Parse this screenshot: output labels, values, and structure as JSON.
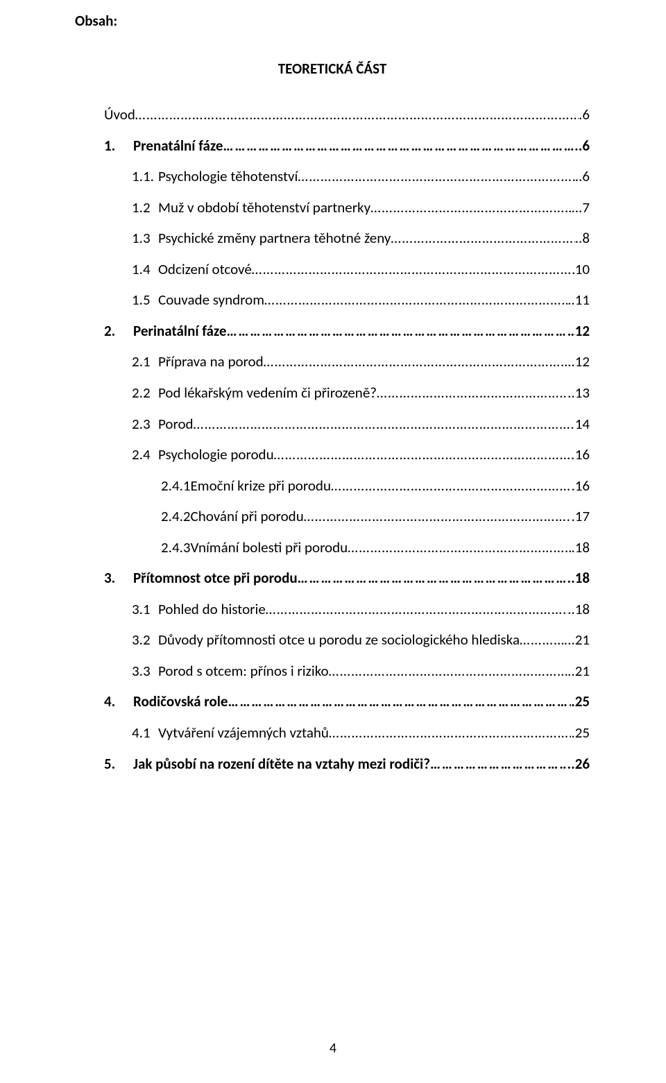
{
  "doc": {
    "heading": "Obsah:",
    "section_title": "TEORETICKÁ ČÁST",
    "page_number": "4",
    "text_color": "#000000",
    "background_color": "#ffffff",
    "font_family": "Calibri",
    "body_font_size_pt": 11
  },
  "toc": [
    {
      "indent": "ind0",
      "bold": false,
      "num": "",
      "label": "Úvod",
      "page": ".6"
    },
    {
      "indent": "ind1",
      "bold": true,
      "num": "1.",
      "label": "Prenatální fáze",
      "page": "..6"
    },
    {
      "indent": "ind2",
      "bold": false,
      "num": "1.1.",
      "label": "Psychologie těhotenství",
      "page": "..6"
    },
    {
      "indent": "ind2",
      "bold": false,
      "num": "1.2",
      "label": "Muž v období těhotenství  partnerky",
      "page": "...7"
    },
    {
      "indent": "ind2",
      "bold": false,
      "num": "1.3",
      "label": "Psychické změny partnera těhotné ženy",
      "page": "..8"
    },
    {
      "indent": "ind2",
      "bold": false,
      "num": "1.4",
      "label": "Odcizení otcové",
      "page": "10"
    },
    {
      "indent": "ind2",
      "bold": false,
      "num": "1.5",
      "label": "Couvade syndrom",
      "page": "..11"
    },
    {
      "indent": "ind1",
      "bold": true,
      "num": "2.",
      "label": "Perinatální fáze",
      "page": "12"
    },
    {
      "indent": "ind2",
      "bold": false,
      "num": "2.1",
      "label": "Příprava na porod",
      "page": "..12"
    },
    {
      "indent": "ind2",
      "bold": false,
      "num": "2.2",
      "label": "Pod lékařským vedením či přirozeně?",
      "page": "..13"
    },
    {
      "indent": "ind2",
      "bold": false,
      "num": "2.3",
      "label": "Porod",
      "page": "14"
    },
    {
      "indent": "ind2",
      "bold": false,
      "num": "2.4",
      "label": "Psychologie porodu",
      "page": "16"
    },
    {
      "indent": "ind3",
      "bold": false,
      "num": "2.4.1",
      "label": "Emoční krize při porodu",
      "page": ".16"
    },
    {
      "indent": "ind3",
      "bold": false,
      "num": "2.4.2",
      "label": "Chování při porodu",
      "page": ".17"
    },
    {
      "indent": "ind3",
      "bold": false,
      "num": "2.4.3",
      "label": "Vnímání bolesti při porodu",
      "page": ".18"
    },
    {
      "indent": "ind1",
      "bold": true,
      "num": "3.",
      "label": "Přítomnost otce při porodu",
      "page": "..18"
    },
    {
      "indent": "ind2",
      "bold": false,
      "num": "3.1",
      "label": "Pohled do historie",
      "page": "..18"
    },
    {
      "indent": "ind2",
      "bold": false,
      "num": "3.2",
      "label": "Důvody přítomnosti otce u porodu ze sociologického hlediska",
      "page": "...21"
    },
    {
      "indent": "ind2",
      "bold": false,
      "num": "3.3",
      "label": "Porod s otcem: přínos i riziko",
      "page": "..21"
    },
    {
      "indent": "ind1",
      "bold": true,
      "num": "4.",
      "label": "Rodičovská role",
      "page": ".25"
    },
    {
      "indent": "ind2",
      "bold": false,
      "num": "4.1",
      "label": "Vytváření vzájemných vztahů",
      "page": ".25"
    },
    {
      "indent": "ind1",
      "bold": true,
      "num": "5.",
      "label": "Jak působí na rození dítěte na vztahy mezi rodiči?",
      "page": "..26"
    }
  ]
}
